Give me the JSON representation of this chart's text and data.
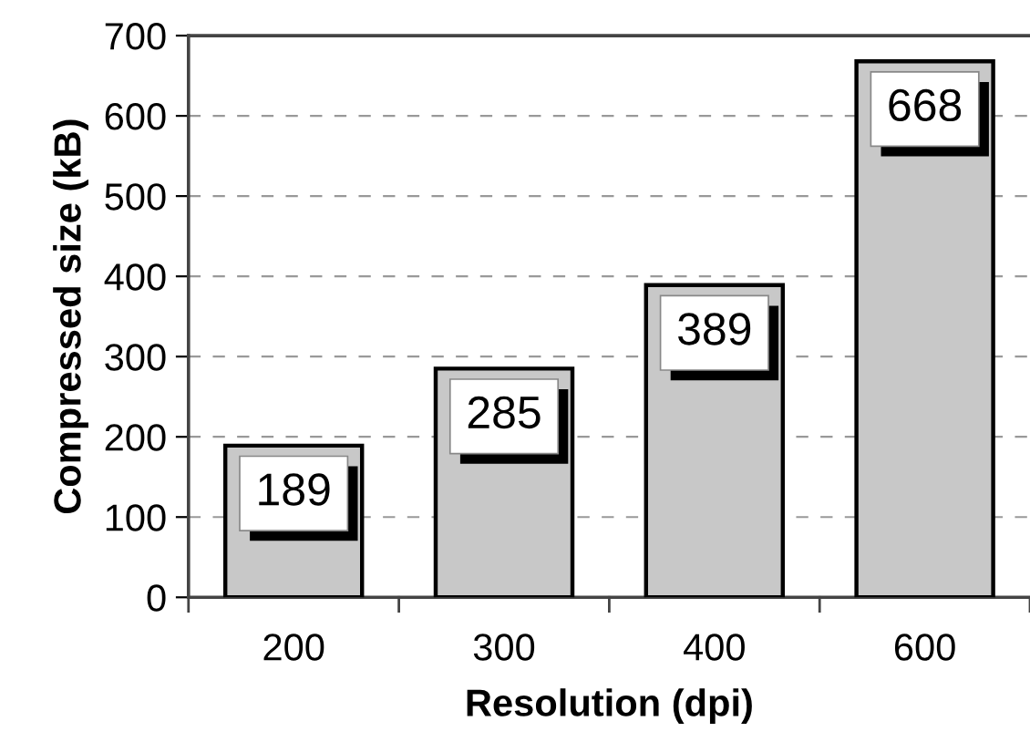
{
  "chart_data": {
    "type": "bar",
    "xlabel": "Resolution (dpi)",
    "ylabel": "Compressed size (kB)",
    "categories": [
      "200",
      "300",
      "400",
      "600"
    ],
    "values": [
      189,
      285,
      389,
      668
    ],
    "color": "#c8c8c8",
    "ylim": [
      0,
      700
    ],
    "yticks": [
      0,
      100,
      200,
      300,
      400,
      500,
      600,
      700
    ],
    "grid": "y",
    "data_labels": true
  }
}
